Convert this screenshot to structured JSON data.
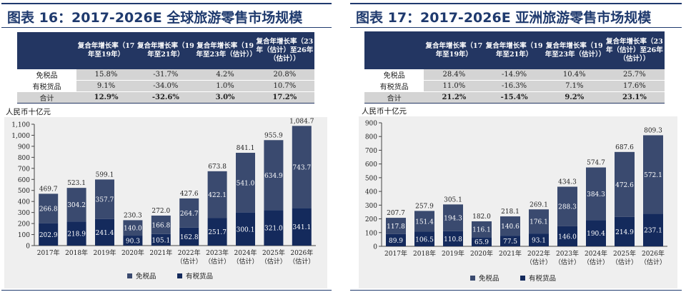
{
  "colors": {
    "duty_free": "#3a4a6f",
    "duty_paid": "#142a5c",
    "header": "#233662",
    "title": "#1f3a6e"
  },
  "legend": {
    "duty_free": "免税品",
    "duty_paid": "有税货品"
  },
  "left": {
    "title": "图表 16：2017-2026E 全球旅游零售市场规模",
    "unit": "人民币十亿元",
    "table": {
      "headers": [
        "复合年增长率（17年至19年）",
        "复合年增长率（19年至21年）",
        "复合年增长率（19年至23年（估计））",
        "复合年增长率（23年（估计）至26年（估计））"
      ],
      "rows": [
        {
          "label": "免税品",
          "values": [
            "15.8%",
            "-31.7%",
            "4.2%",
            "20.8%"
          ]
        },
        {
          "label": "有税货品",
          "values": [
            "9.1%",
            "-34.0%",
            "1.0%",
            "10.7%"
          ]
        },
        {
          "label": "合计",
          "values": [
            "12.9%",
            "-32.6%",
            "3.0%",
            "17.2%"
          ]
        }
      ]
    }
  },
  "right": {
    "title": "图表 17：2017-2026E 亚洲旅游零售市场规模",
    "unit": "人民币十亿元",
    "table": {
      "headers": [
        "复合年增长率（17年至19年）",
        "复合年增长率（19年至21年）",
        "复合年增长率（19年至23年（估计））",
        "复合年增长率（23年（估计）至26年（估计））"
      ],
      "rows": [
        {
          "label": "免税品",
          "values": [
            "28.4%",
            "-14.9%",
            "10.4%",
            "25.7%"
          ]
        },
        {
          "label": "有税货品",
          "values": [
            "11.0%",
            "-16.3%",
            "7.1%",
            "17.6%"
          ]
        },
        {
          "label": "合计",
          "values": [
            "21.2%",
            "-15.4%",
            "9.2%",
            "23.1%"
          ]
        }
      ]
    }
  },
  "chart_data": [
    {
      "type": "bar",
      "stacked": true,
      "title": "2017-2026E 全球旅游零售市场规模",
      "ylabel": "人民币十亿元",
      "ylim": [
        0,
        1100
      ],
      "yticks": [
        0,
        100,
        200,
        300,
        400,
        500,
        600,
        700,
        800,
        900,
        "1,000",
        "1,100"
      ],
      "categories": [
        [
          "2017年"
        ],
        [
          "2018年"
        ],
        [
          "2019年"
        ],
        [
          "2020年"
        ],
        [
          "2021年"
        ],
        [
          "2022年",
          "（估计）"
        ],
        [
          "2023年",
          "（估计）"
        ],
        [
          "2024年",
          "（估计）"
        ],
        [
          "2025年",
          "（估计）"
        ],
        [
          "2026年",
          "（估计）"
        ]
      ],
      "series": [
        {
          "name": "有税货品",
          "values": [
            202.9,
            218.9,
            241.4,
            90.3,
            105.1,
            162.8,
            251.7,
            300.1,
            321.0,
            341.1
          ],
          "labels": [
            "202.9",
            "218.9",
            "241.4",
            "90.3",
            "105.1",
            "162.8",
            "251.7",
            "300.1",
            "321.0",
            "341.1"
          ]
        },
        {
          "name": "免税品",
          "values": [
            266.8,
            304.2,
            357.7,
            140.0,
            166.8,
            264.7,
            422.1,
            541.0,
            634.9,
            743.7
          ],
          "labels": [
            "266.8",
            "304.2",
            "357.7",
            "140.0",
            "166.8",
            "264.7",
            "422.1",
            "541.0",
            "634.9",
            "743.7"
          ]
        }
      ],
      "totals": [
        469.7,
        523.1,
        599.1,
        230.3,
        272.0,
        427.6,
        673.8,
        841.1,
        955.9,
        1084.7
      ],
      "total_labels": [
        "469.7",
        "523.1",
        "599.1",
        "230.3",
        "272.0",
        "427.6",
        "673.8",
        "841.1",
        "955.9",
        "1,084.7"
      ]
    },
    {
      "type": "bar",
      "stacked": true,
      "title": "2017-2026E 亚洲旅游零售市场规模",
      "ylabel": "人民币十亿元",
      "ylim": [
        0,
        900
      ],
      "yticks": [
        0,
        100,
        200,
        300,
        400,
        500,
        600,
        700,
        800,
        900
      ],
      "categories": [
        [
          "2017年"
        ],
        [
          "2018年"
        ],
        [
          "2019年"
        ],
        [
          "2020年"
        ],
        [
          "2021年"
        ],
        [
          "2022年",
          "（估计）"
        ],
        [
          "2023年",
          "（估计）"
        ],
        [
          "2024年",
          "（估计）"
        ],
        [
          "2025年",
          "（估计）"
        ],
        [
          "2026年",
          "（估计）"
        ]
      ],
      "series": [
        {
          "name": "有税货品",
          "values": [
            89.9,
            106.5,
            110.8,
            65.9,
            77.5,
            93.1,
            146.0,
            190.4,
            214.9,
            237.1
          ],
          "labels": [
            "89.9",
            "106.5",
            "110.8",
            "65.9",
            "77.5",
            "93.1",
            "146.0",
            "190.4",
            "214.9",
            "237.1"
          ]
        },
        {
          "name": "免税品",
          "values": [
            117.8,
            151.4,
            194.3,
            116.1,
            140.6,
            176.1,
            288.3,
            384.3,
            472.6,
            572.1
          ],
          "labels": [
            "117.8",
            "151.4",
            "194.3",
            "116.1",
            "140.6",
            "176.1",
            "288.3",
            "384.3",
            "472.6",
            "572.1"
          ]
        }
      ],
      "totals": [
        207.7,
        257.9,
        305.1,
        182.0,
        218.1,
        269.1,
        434.3,
        574.7,
        687.6,
        809.3
      ],
      "total_labels": [
        "207.7",
        "257.9",
        "305.1",
        "182.0",
        "218.1",
        "269.1",
        "434.3",
        "574.7",
        "687.6",
        "809.3"
      ]
    }
  ]
}
